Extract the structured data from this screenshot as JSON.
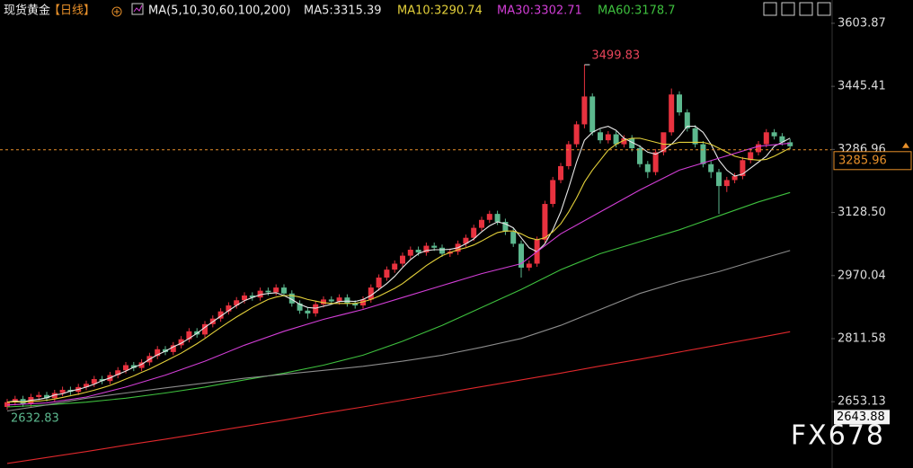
{
  "chart_data": {
    "type": "candlestick",
    "title": "现货黄金",
    "period": "【日线】",
    "ma_settings": "MA(5,10,30,60,100,200)",
    "ma_labels": [
      "MA5:3315.39",
      "MA10:3290.74",
      "MA30:3302.71",
      "MA60:3178.7"
    ],
    "up_color": "#e8323f",
    "down_color": "#5cb88e",
    "open": [
      2640,
      2652,
      2660,
      2648,
      2665,
      2670,
      2662,
      2675,
      2683,
      2678,
      2690,
      2698,
      2710,
      2705,
      2720,
      2732,
      2745,
      2738,
      2752,
      2768,
      2785,
      2778,
      2795,
      2810,
      2830,
      2822,
      2848,
      2862,
      2880,
      2895,
      2908,
      2920,
      2915,
      2932,
      2928,
      2940,
      2925,
      2900,
      2882,
      2875,
      2898,
      2910,
      2905,
      2915,
      2900,
      2895,
      2910,
      2940,
      2965,
      2985,
      3000,
      3020,
      3035,
      3028,
      3045,
      3040,
      3025,
      3030,
      3050,
      3065,
      3090,
      3110,
      3125,
      3105,
      3080,
      3050,
      2990,
      3000,
      3060,
      3150,
      3210,
      3245,
      3300,
      3350,
      3420,
      3330,
      3310,
      3325,
      3300,
      3315,
      3290,
      3250,
      3230,
      3280,
      3330,
      3425,
      3380,
      3340,
      3300,
      3250,
      3230,
      3195,
      3210,
      3220,
      3260,
      3280,
      3300,
      3330,
      3320,
      3305
    ],
    "high": [
      2660,
      2668,
      2668,
      2673,
      2678,
      2678,
      2683,
      2691,
      2691,
      2698,
      2706,
      2718,
      2718,
      2728,
      2740,
      2753,
      2753,
      2760,
      2776,
      2793,
      2793,
      2803,
      2818,
      2838,
      2838,
      2856,
      2870,
      2888,
      2903,
      2916,
      2928,
      2928,
      2940,
      2940,
      2948,
      2948,
      2933,
      2908,
      2890,
      2906,
      2918,
      2918,
      2923,
      2923,
      2908,
      2918,
      2948,
      2973,
      2993,
      3008,
      3028,
      3043,
      3043,
      3053,
      3053,
      3048,
      3038,
      3058,
      3073,
      3098,
      3118,
      3133,
      3133,
      3113,
      3088,
      3058,
      3008,
      3068,
      3158,
      3218,
      3253,
      3308,
      3358,
      3499.83,
      3428,
      3338,
      3333,
      3333,
      3323,
      3323,
      3298,
      3258,
      3288,
      3328,
      3440,
      3433,
      3388,
      3348,
      3308,
      3258,
      3238,
      3218,
      3228,
      3268,
      3288,
      3308,
      3338,
      3338,
      3328,
      3313
    ],
    "low": [
      2632.83,
      2644,
      2640,
      2640,
      2657,
      2654,
      2654,
      2667,
      2670,
      2670,
      2682,
      2690,
      2697,
      2697,
      2712,
      2724,
      2730,
      2730,
      2744,
      2760,
      2770,
      2770,
      2787,
      2802,
      2814,
      2814,
      2840,
      2854,
      2872,
      2887,
      2900,
      2907,
      2907,
      2920,
      2920,
      2917,
      2892,
      2874,
      2862,
      2867,
      2890,
      2897,
      2897,
      2892,
      2887,
      2887,
      2902,
      2932,
      2957,
      2977,
      2992,
      3012,
      3020,
      3020,
      3032,
      3017,
      3017,
      3022,
      3042,
      3057,
      3082,
      3102,
      3097,
      3072,
      3042,
      2965,
      2982,
      2992,
      3052,
      3142,
      3202,
      3237,
      3292,
      3340,
      3322,
      3302,
      3302,
      3292,
      3292,
      3282,
      3242,
      3215,
      3222,
      3272,
      3322,
      3372,
      3332,
      3292,
      3242,
      3215,
      3125,
      3180,
      3202,
      3212,
      3252,
      3272,
      3292,
      3312,
      3297,
      3287
    ],
    "close": [
      2652,
      2660,
      2648,
      2665,
      2670,
      2662,
      2675,
      2683,
      2678,
      2690,
      2698,
      2710,
      2705,
      2720,
      2732,
      2745,
      2738,
      2752,
      2768,
      2785,
      2778,
      2795,
      2810,
      2830,
      2822,
      2848,
      2862,
      2880,
      2895,
      2908,
      2920,
      2915,
      2932,
      2928,
      2940,
      2925,
      2900,
      2882,
      2875,
      2898,
      2910,
      2905,
      2915,
      2900,
      2895,
      2910,
      2940,
      2965,
      2985,
      3000,
      3020,
      3035,
      3028,
      3045,
      3040,
      3025,
      3030,
      3050,
      3065,
      3090,
      3110,
      3125,
      3105,
      3080,
      3050,
      2990,
      3000,
      3060,
      3150,
      3210,
      3245,
      3300,
      3350,
      3420,
      3330,
      3310,
      3325,
      3300,
      3315,
      3290,
      3250,
      3230,
      3280,
      3330,
      3425,
      3380,
      3340,
      3300,
      3250,
      3230,
      3195,
      3210,
      3220,
      3260,
      3280,
      3300,
      3330,
      3320,
      3305,
      3295
    ],
    "overlays": [
      {
        "color": "#e8e8e8",
        "values": [
          2652,
          2655,
          2653,
          2657,
          2659,
          2663,
          2670,
          2673,
          2680,
          2684,
          2690,
          2697,
          2706,
          2713,
          2722,
          2730,
          2740,
          2747,
          2760,
          2771,
          2780,
          2791,
          2800,
          2812,
          2825,
          2840,
          2854,
          2868,
          2882,
          2895,
          2907,
          2915,
          2922,
          2925,
          2927,
          2920,
          2910,
          2898,
          2890,
          2888,
          2893,
          2898,
          2905,
          2906,
          2905,
          2910,
          2920,
          2935,
          2950,
          2968,
          2990,
          3010,
          3025,
          3033,
          3035,
          3035,
          3036,
          3040,
          3050,
          3062,
          3080,
          3095,
          3105,
          3100,
          3090,
          3065,
          3040,
          3030,
          3050,
          3085,
          3130,
          3190,
          3255,
          3310,
          3330,
          3340,
          3345,
          3335,
          3315,
          3305,
          3295,
          3280,
          3275,
          3285,
          3300,
          3320,
          3345,
          3345,
          3330,
          3300,
          3260,
          3235,
          3220,
          3225,
          3240,
          3255,
          3270,
          3295,
          3305,
          3315.39
        ]
      },
      {
        "color": "#e3d03a",
        "values": [
          2652,
          2653,
          2652,
          2654,
          2655,
          2657,
          2660,
          2664,
          2668,
          2672,
          2677,
          2682,
          2688,
          2694,
          2702,
          2710,
          2718,
          2727,
          2735,
          2745,
          2755,
          2765,
          2775,
          2787,
          2799,
          2812,
          2826,
          2840,
          2853,
          2866,
          2878,
          2890,
          2900,
          2910,
          2916,
          2920,
          2920,
          2916,
          2910,
          2906,
          2902,
          2900,
          2900,
          2900,
          2900,
          2904,
          2910,
          2918,
          2928,
          2938,
          2950,
          2965,
          2980,
          2995,
          3008,
          3020,
          3028,
          3035,
          3040,
          3047,
          3057,
          3068,
          3078,
          3082,
          3082,
          3075,
          3065,
          3060,
          3065,
          3080,
          3100,
          3130,
          3165,
          3205,
          3235,
          3260,
          3285,
          3300,
          3310,
          3315,
          3315,
          3310,
          3305,
          3300,
          3300,
          3305,
          3305,
          3305,
          3305,
          3300,
          3290,
          3280,
          3270,
          3265,
          3262,
          3260,
          3262,
          3270,
          3280,
          3290.74
        ]
      },
      {
        "color": "#d23ed6",
        "x": [
          0,
          5,
          10,
          15,
          20,
          25,
          30,
          35,
          40,
          45,
          50,
          55,
          60,
          65,
          70,
          75,
          80,
          85,
          90,
          95,
          99
        ],
        "values": [
          2645,
          2650,
          2665,
          2690,
          2720,
          2755,
          2795,
          2830,
          2860,
          2885,
          2915,
          2945,
          2975,
          3000,
          3075,
          3130,
          3185,
          3235,
          3265,
          3295,
          3302.71
        ]
      },
      {
        "color": "#3ec03e",
        "x": [
          0,
          5,
          10,
          15,
          20,
          25,
          30,
          35,
          40,
          45,
          50,
          55,
          60,
          65,
          70,
          75,
          80,
          85,
          90,
          95,
          99
        ],
        "values": [
          2640,
          2645,
          2652,
          2662,
          2675,
          2690,
          2708,
          2725,
          2745,
          2770,
          2805,
          2845,
          2890,
          2935,
          2985,
          3025,
          3055,
          3085,
          3120,
          3155,
          3178.7
        ]
      },
      {
        "color": "#8c8c8c",
        "x": [
          0,
          5,
          10,
          15,
          20,
          25,
          30,
          35,
          40,
          45,
          50,
          55,
          60,
          65,
          70,
          75,
          80,
          85,
          90,
          95,
          99
        ],
        "values": [
          2630,
          2645,
          2662,
          2675,
          2688,
          2700,
          2712,
          2722,
          2732,
          2742,
          2755,
          2770,
          2790,
          2812,
          2845,
          2885,
          2925,
          2955,
          2980,
          3010,
          3033
        ]
      },
      {
        "color": "#e0282c",
        "x": [
          0,
          5,
          10,
          15,
          20,
          25,
          30,
          35,
          40,
          45,
          50,
          55,
          60,
          65,
          70,
          75,
          80,
          85,
          90,
          95,
          99
        ],
        "values": [
          2498,
          2513,
          2528,
          2544,
          2559,
          2575,
          2591,
          2607,
          2624,
          2640,
          2657,
          2674,
          2691,
          2708,
          2725,
          2743,
          2760,
          2778,
          2796,
          2814,
          2829
        ]
      }
    ],
    "ylim": [
      2486.6,
      3662.4
    ],
    "yticks": [
      2653.13,
      2811.58,
      2970.04,
      {
        "value": 3128.5,
        "label": "3128.50"
      },
      3286.96,
      3445.41,
      3603.87
    ],
    "high_label": 3499.83,
    "low_label": 2632.83,
    "current_price": 3285.96,
    "current_color": "#e8902a",
    "marker_price": 2643.88,
    "watermark": "FX678"
  }
}
